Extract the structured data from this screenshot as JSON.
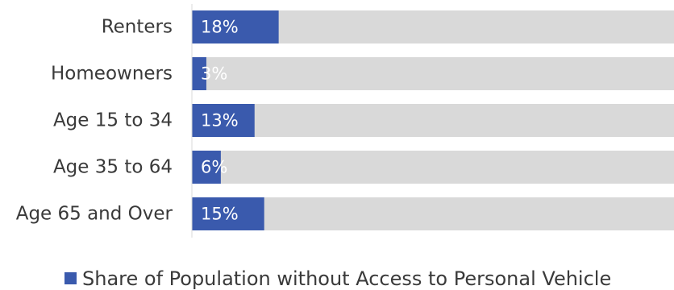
{
  "chart_data": {
    "type": "bar",
    "orientation": "horizontal",
    "stacked_with_remainder": true,
    "categories": [
      "Renters",
      "Homeowners",
      "Age 15 to 34",
      "Age 35 to 64",
      "Age 65 and Over"
    ],
    "series": [
      {
        "name": "Share of Population without Access to Personal Vehicle",
        "values": [
          18,
          3,
          13,
          6,
          15
        ],
        "labels": [
          "18%",
          "3%",
          "13%",
          "6%",
          "15%"
        ],
        "color": "#3a5aad"
      }
    ],
    "remainder_color": "#d9d9d9",
    "xlim": [
      0,
      100
    ],
    "unit": "%",
    "grid": false,
    "legend": "bottom"
  }
}
